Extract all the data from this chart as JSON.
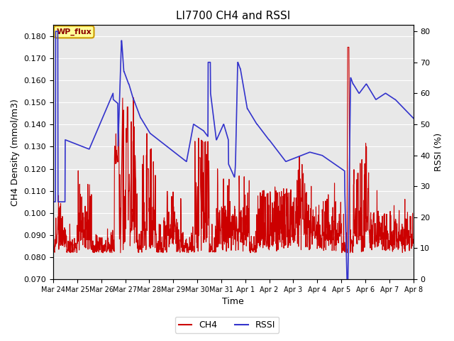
{
  "title": "LI7700 CH4 and RSSI",
  "xlabel": "Time",
  "ylabel_left": "CH4 Density (mmol/m3)",
  "ylabel_right": "RSSI (%)",
  "ylim_left": [
    0.07,
    0.185
  ],
  "ylim_right": [
    0,
    82
  ],
  "yticks_left": [
    0.07,
    0.08,
    0.09,
    0.1,
    0.11,
    0.12,
    0.13,
    0.14,
    0.15,
    0.16,
    0.17,
    0.18
  ],
  "yticks_right": [
    0,
    10,
    20,
    30,
    40,
    50,
    60,
    70,
    80
  ],
  "ch4_color": "#cc0000",
  "rssi_color": "#3333cc",
  "bg_color": "#e8e8e8",
  "annotation_text": "WP_flux",
  "num_days": 15,
  "tick_labels": [
    "Mar 24",
    "Mar 25",
    "Mar 26",
    "Mar 27",
    "Mar 28",
    "Mar 29",
    "Mar 30",
    "Mar 31",
    "Apr 1",
    "Apr 2",
    "Apr 3",
    "Apr 4",
    "Apr 5",
    "Apr 6",
    "Apr 7",
    "Apr 8"
  ],
  "legend_ch4": "CH4",
  "legend_rssi": "RSSI"
}
